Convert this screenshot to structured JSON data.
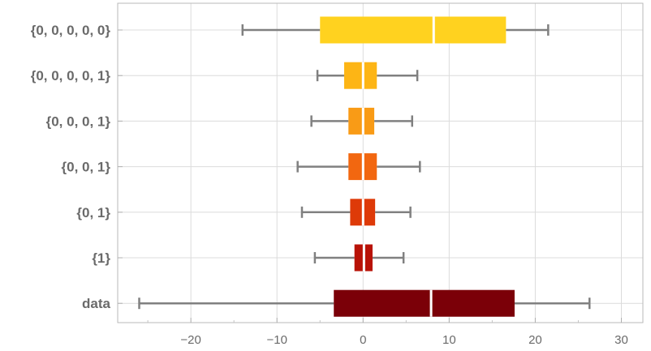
{
  "chart_data": {
    "type": "boxwhisker",
    "orientation": "horizontal",
    "xlim": [
      -28.5,
      32.5
    ],
    "xticks": [
      -20,
      -10,
      0,
      10,
      20,
      30
    ],
    "xtick_labels": [
      "−20",
      "−10",
      "0",
      "10",
      "20",
      "30"
    ],
    "grid": true,
    "boxes": [
      {
        "label": "{0, 0, 0, 0, 0}",
        "whisker_low": -14.0,
        "q1": -5.0,
        "median": 8.2,
        "q3": 16.6,
        "whisker_high": 21.5,
        "color": "#FFD21F"
      },
      {
        "label": "{0, 0, 0, 0, 1}",
        "whisker_low": -5.3,
        "q1": -2.2,
        "median": 0.0,
        "q3": 1.6,
        "whisker_high": 6.3,
        "color": "#FDB515"
      },
      {
        "label": "{0, 0, 0, 1}",
        "whisker_low": -6.0,
        "q1": -1.7,
        "median": 0.0,
        "q3": 1.3,
        "whisker_high": 5.7,
        "color": "#F99B16"
      },
      {
        "label": "{0, 0, 1}",
        "whisker_low": -7.6,
        "q1": -1.7,
        "median": 0.0,
        "q3": 1.6,
        "whisker_high": 6.6,
        "color": "#F26710"
      },
      {
        "label": "{0, 1}",
        "whisker_low": -7.1,
        "q1": -1.5,
        "median": 0.0,
        "q3": 1.4,
        "whisker_high": 5.5,
        "color": "#DE3A08"
      },
      {
        "label": "{1}",
        "whisker_low": -5.6,
        "q1": -1.0,
        "median": 0.1,
        "q3": 1.1,
        "whisker_high": 4.7,
        "color": "#B81207"
      },
      {
        "label": "data",
        "whisker_low": -26.0,
        "q1": -3.4,
        "median": 7.9,
        "q3": 17.6,
        "whisker_high": 26.3,
        "color": "#7B0008"
      }
    ]
  }
}
